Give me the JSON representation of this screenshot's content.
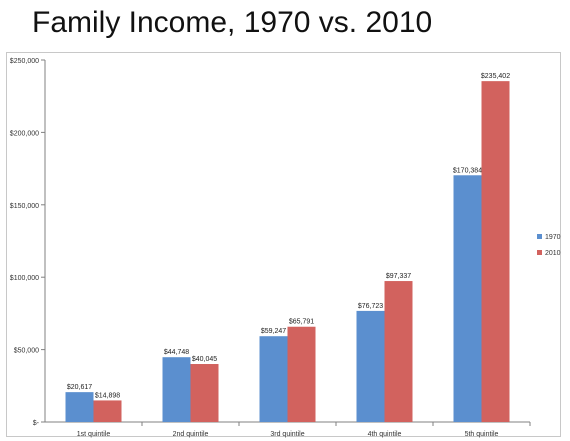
{
  "title": "Family Income, 1970 vs. 2010",
  "chart_data": {
    "type": "bar",
    "categories": [
      "1st quintile",
      "2nd quintile",
      "3rd quintile",
      "4th quintile",
      "5th quintile"
    ],
    "series": [
      {
        "name": "1970",
        "values": [
          20617,
          44748,
          59247,
          76723,
          170384
        ],
        "labels": [
          "$20,617",
          "$44,748",
          "$59,247",
          "$76,723",
          "$170,384"
        ],
        "color": "#5b8fcf"
      },
      {
        "name": "2010",
        "values": [
          14898,
          40045,
          65791,
          97337,
          235402
        ],
        "labels": [
          "$14,898",
          "$40,045",
          "$65,791",
          "$97,337",
          "$235,402"
        ],
        "color": "#d2625e"
      }
    ],
    "ylim": [
      0,
      250000
    ],
    "yticks": [
      0,
      50000,
      100000,
      150000,
      200000,
      250000
    ],
    "ytick_labels": [
      "$-",
      "$50,000",
      "$100,000",
      "$150,000",
      "$200,000",
      "$250,000"
    ],
    "grid": false,
    "legend": "right"
  }
}
